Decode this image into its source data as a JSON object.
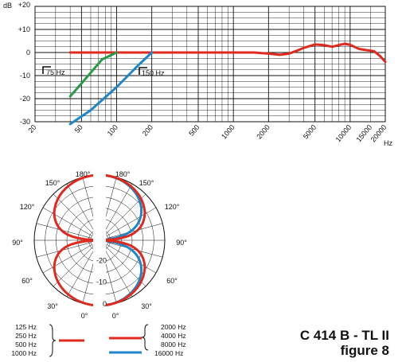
{
  "chart_data": [
    {
      "type": "line",
      "y_unit": "dB",
      "x_unit": "Hz",
      "x_scale": "log",
      "xlim": [
        20,
        20000
      ],
      "ylim": [
        -30,
        20
      ],
      "grid": true,
      "y_ticks": [
        "+20",
        "+10",
        "0",
        "-10",
        "-20",
        "-30"
      ],
      "x_ticks": [
        "20",
        "50",
        "100",
        "200",
        "500",
        "1000",
        "2000",
        "5000",
        "10000",
        "15000",
        "20000"
      ],
      "annotations": [
        "75 Hz",
        "150 Hz"
      ],
      "series": [
        {
          "color": "#e0291f",
          "x": [
            40,
            100,
            200,
            500,
            1000,
            1500,
            2000,
            2500,
            3000,
            3500,
            4000,
            5000,
            6000,
            7000,
            8000,
            9000,
            10000,
            12000,
            14000,
            16000,
            18000,
            20000
          ],
          "y": [
            0,
            0,
            0,
            0,
            0,
            0,
            -0.5,
            -1,
            -0.5,
            0.8,
            2,
            3.5,
            3.2,
            2.5,
            3.2,
            3.8,
            3.3,
            1.5,
            1,
            0.6,
            -1.5,
            -4
          ]
        },
        {
          "color": "#2a9a48",
          "x": [
            40,
            55,
            75,
            100
          ],
          "y": [
            -19,
            -11,
            -3,
            0
          ]
        },
        {
          "color": "#1f86c8",
          "x": [
            40,
            60,
            100,
            150,
            200
          ],
          "y": [
            -31,
            -25,
            -15,
            -6,
            0
          ]
        }
      ]
    },
    {
      "type": "polar",
      "r_ticks": [
        "0",
        "-10",
        "-20"
      ],
      "angle_ticks": [
        "0°",
        "30°",
        "60°",
        "90°",
        "120°",
        "150°",
        "180°"
      ],
      "series": [
        {
          "legend": [
            "125 Hz",
            "250 Hz",
            "500 Hz",
            "1000 Hz"
          ],
          "color": "#e0291f",
          "pattern": "figure-8"
        },
        {
          "legend": [
            "2000 Hz",
            "4000 Hz",
            "8000 Hz"
          ],
          "color": "#e0291f",
          "pattern": "figure-8"
        },
        {
          "legend": [
            "16000 Hz"
          ],
          "color": "#1f86c8",
          "pattern": "figure-8 (narrower at 30°–150°)"
        }
      ]
    }
  ],
  "caption": {
    "model": "C 414 B - TL II",
    "figure": "figure 8"
  },
  "colors": {
    "red": "#e0291f",
    "green": "#2a9a48",
    "blue": "#1f86c8"
  }
}
